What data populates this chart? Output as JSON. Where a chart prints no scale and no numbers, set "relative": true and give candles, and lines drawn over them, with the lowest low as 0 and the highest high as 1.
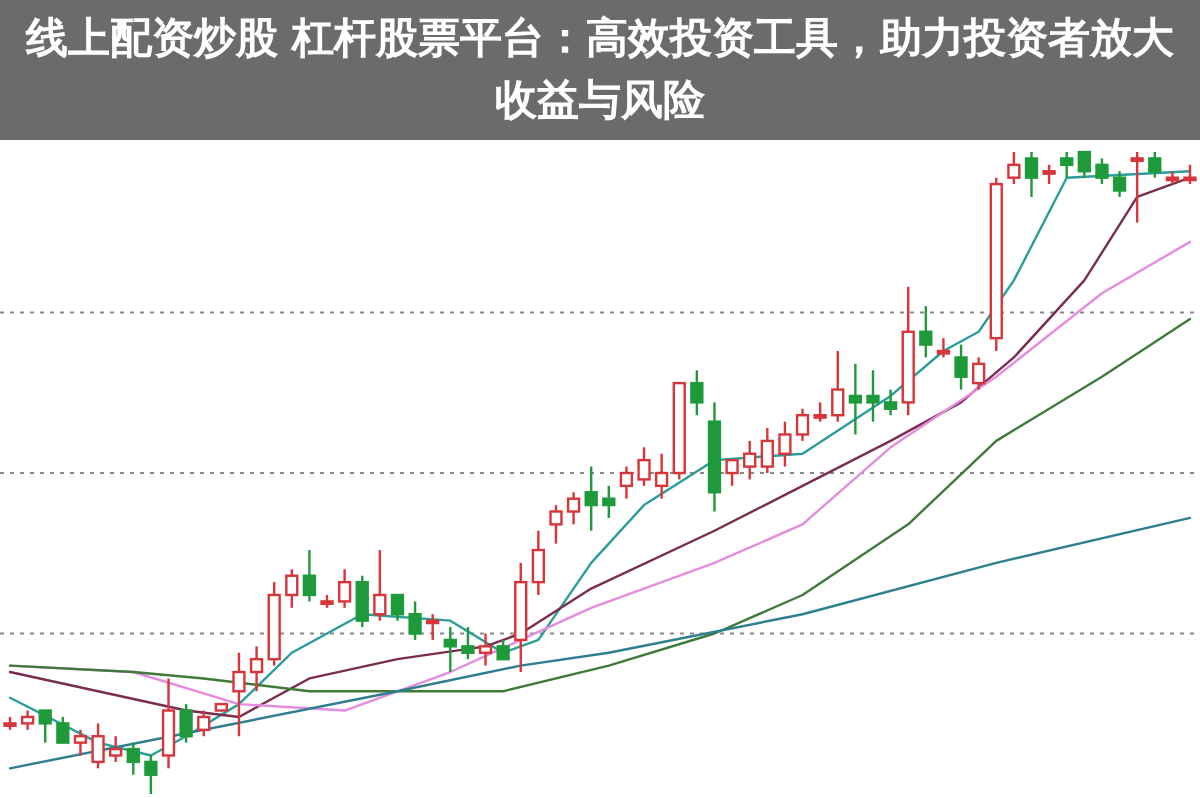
{
  "chart_data": {
    "type": "candlestick",
    "title": "线上配资炒股 杠杆股票平台：高效投资工具，助力投资者放大收益与风险",
    "relative": true,
    "categories": [
      null,
      null,
      null,
      null,
      null,
      null,
      null,
      null,
      null,
      null,
      null,
      null,
      null,
      null,
      null,
      null,
      null,
      null,
      null,
      null,
      null,
      null,
      null,
      null,
      null,
      null,
      null,
      null,
      null,
      null,
      null,
      null,
      null,
      null,
      null,
      null,
      null,
      null,
      null,
      null,
      null,
      null,
      null,
      null,
      null,
      null,
      null,
      null,
      null,
      null,
      null,
      null,
      null,
      null,
      null,
      null,
      null,
      null,
      null,
      null,
      null,
      null,
      null,
      null,
      null,
      null,
      null,
      null
    ],
    "ohlc": [
      [
        0.11,
        0.12,
        0.1,
        0.11
      ],
      [
        0.11,
        0.13,
        0.1,
        0.12
      ],
      [
        0.13,
        0.13,
        0.08,
        0.11
      ],
      [
        0.11,
        0.12,
        0.08,
        0.08
      ],
      [
        0.08,
        0.1,
        0.06,
        0.09
      ],
      [
        0.05,
        0.11,
        0.04,
        0.09
      ],
      [
        0.06,
        0.09,
        0.05,
        0.07
      ],
      [
        0.07,
        0.08,
        0.03,
        0.05
      ],
      [
        0.05,
        0.06,
        0.0,
        0.03
      ],
      [
        0.06,
        0.18,
        0.04,
        0.13
      ],
      [
        0.13,
        0.14,
        0.08,
        0.09
      ],
      [
        0.1,
        0.13,
        0.09,
        0.12
      ],
      [
        0.13,
        0.14,
        0.13,
        0.14
      ],
      [
        0.16,
        0.22,
        0.09,
        0.19
      ],
      [
        0.19,
        0.23,
        0.16,
        0.21
      ],
      [
        0.21,
        0.33,
        0.2,
        0.31
      ],
      [
        0.31,
        0.35,
        0.29,
        0.34
      ],
      [
        0.34,
        0.38,
        0.3,
        0.31
      ],
      [
        0.3,
        0.31,
        0.29,
        0.3
      ],
      [
        0.3,
        0.35,
        0.29,
        0.33
      ],
      [
        0.33,
        0.34,
        0.26,
        0.27
      ],
      [
        0.28,
        0.38,
        0.27,
        0.31
      ],
      [
        0.31,
        0.31,
        0.27,
        0.28
      ],
      [
        0.28,
        0.3,
        0.24,
        0.25
      ],
      [
        0.27,
        0.28,
        0.24,
        0.27
      ],
      [
        0.24,
        0.26,
        0.19,
        0.23
      ],
      [
        0.23,
        0.26,
        0.21,
        0.22
      ],
      [
        0.22,
        0.25,
        0.2,
        0.23
      ],
      [
        0.23,
        0.24,
        0.21,
        0.21
      ],
      [
        0.24,
        0.36,
        0.19,
        0.33
      ],
      [
        0.33,
        0.41,
        0.31,
        0.38
      ],
      [
        0.42,
        0.45,
        0.39,
        0.44
      ],
      [
        0.44,
        0.47,
        0.42,
        0.46
      ],
      [
        0.47,
        0.51,
        0.41,
        0.45
      ],
      [
        0.46,
        0.48,
        0.43,
        0.45
      ],
      [
        0.48,
        0.51,
        0.46,
        0.5
      ],
      [
        0.49,
        0.54,
        0.48,
        0.52
      ],
      [
        0.48,
        0.53,
        0.46,
        0.5
      ],
      [
        0.5,
        0.64,
        0.49,
        0.64
      ],
      [
        0.64,
        0.66,
        0.59,
        0.61
      ],
      [
        0.58,
        0.61,
        0.44,
        0.47
      ],
      [
        0.5,
        0.52,
        0.48,
        0.52
      ],
      [
        0.51,
        0.55,
        0.49,
        0.53
      ],
      [
        0.51,
        0.57,
        0.5,
        0.55
      ],
      [
        0.53,
        0.58,
        0.51,
        0.56
      ],
      [
        0.56,
        0.6,
        0.55,
        0.59
      ],
      [
        0.59,
        0.61,
        0.58,
        0.59
      ],
      [
        0.59,
        0.69,
        0.58,
        0.63
      ],
      [
        0.62,
        0.67,
        0.56,
        0.61
      ],
      [
        0.62,
        0.66,
        0.58,
        0.61
      ],
      [
        0.61,
        0.63,
        0.59,
        0.6
      ],
      [
        0.61,
        0.79,
        0.59,
        0.72
      ],
      [
        0.72,
        0.76,
        0.68,
        0.7
      ],
      [
        0.69,
        0.71,
        0.68,
        0.69
      ],
      [
        0.68,
        0.7,
        0.63,
        0.65
      ],
      [
        0.64,
        0.68,
        0.63,
        0.67
      ],
      [
        0.71,
        0.96,
        0.69,
        0.95
      ],
      [
        0.96,
        1.0,
        0.95,
        0.98
      ],
      [
        0.99,
        1.0,
        0.93,
        0.96
      ],
      [
        0.97,
        0.98,
        0.95,
        0.97
      ],
      [
        0.99,
        1.0,
        0.96,
        0.98
      ],
      [
        1.0,
        1.0,
        0.96,
        0.97
      ],
      [
        0.98,
        0.99,
        0.95,
        0.96
      ],
      [
        0.96,
        0.97,
        0.93,
        0.94
      ],
      [
        0.99,
        1.0,
        0.89,
        0.99
      ],
      [
        0.99,
        1.0,
        0.96,
        0.97
      ],
      [
        0.96,
        0.97,
        0.95,
        0.96
      ],
      [
        0.96,
        0.98,
        0.95,
        0.96
      ]
    ],
    "series": [
      {
        "type": "line",
        "color": "#2a9d9a",
        "values": [
          0.15,
          null,
          null,
          null,
          null,
          0.08,
          null,
          null,
          0.06,
          null,
          0.09,
          null,
          null,
          0.14,
          null,
          null,
          0.22,
          null,
          null,
          null,
          0.28,
          null,
          null,
          null,
          null,
          0.27,
          null,
          null,
          0.22,
          null,
          0.24,
          null,
          null,
          0.36,
          null,
          null,
          0.45,
          null,
          null,
          null,
          0.52,
          null,
          null,
          null,
          null,
          0.53,
          null,
          null,
          null,
          null,
          0.62,
          null,
          null,
          0.69,
          null,
          0.72,
          null,
          0.8,
          null,
          null,
          0.96,
          null,
          null,
          null,
          null,
          null,
          null,
          0.97
        ]
      },
      {
        "type": "line",
        "color": "#7a2e4f",
        "values": [
          0.19,
          null,
          null,
          null,
          null,
          0.16,
          null,
          null,
          null,
          null,
          0.13,
          null,
          null,
          0.12,
          null,
          null,
          null,
          0.18,
          null,
          null,
          null,
          null,
          0.21,
          null,
          null,
          null,
          null,
          0.23,
          null,
          0.25,
          null,
          null,
          null,
          0.32,
          null,
          null,
          null,
          null,
          null,
          null,
          0.41,
          null,
          null,
          null,
          null,
          0.48,
          null,
          null,
          null,
          null,
          0.55,
          null,
          null,
          null,
          0.61,
          null,
          null,
          0.68,
          null,
          null,
          null,
          0.8,
          null,
          null,
          0.93,
          null,
          null,
          0.96
        ]
      },
      {
        "type": "line",
        "color": "#e58be0",
        "values": [
          0.2,
          null,
          null,
          null,
          null,
          null,
          null,
          0.19,
          null,
          null,
          null,
          null,
          null,
          0.14,
          null,
          null,
          null,
          null,
          null,
          0.13,
          null,
          null,
          null,
          null,
          null,
          0.19,
          null,
          null,
          null,
          0.24,
          null,
          null,
          null,
          0.29,
          null,
          null,
          null,
          null,
          null,
          null,
          0.36,
          null,
          null,
          null,
          null,
          0.42,
          null,
          null,
          null,
          null,
          0.54,
          null,
          null,
          null,
          null,
          null,
          0.65,
          null,
          null,
          null,
          null,
          null,
          0.78,
          null,
          null,
          null,
          null,
          0.86
        ]
      },
      {
        "type": "line",
        "color": "#3f7a3a",
        "values": [
          0.2,
          null,
          null,
          null,
          null,
          null,
          null,
          0.19,
          null,
          null,
          null,
          0.18,
          null,
          null,
          null,
          null,
          null,
          0.16,
          null,
          null,
          null,
          null,
          null,
          null,
          null,
          null,
          null,
          null,
          0.16,
          null,
          null,
          null,
          null,
          null,
          0.2,
          null,
          null,
          null,
          null,
          null,
          0.25,
          null,
          null,
          null,
          null,
          0.31,
          null,
          null,
          null,
          null,
          null,
          0.42,
          null,
          null,
          null,
          null,
          0.55,
          null,
          null,
          null,
          null,
          null,
          0.65,
          null,
          null,
          null,
          null,
          0.74
        ]
      },
      {
        "type": "line",
        "color": "#2d7f8f",
        "values": [
          0.04,
          null,
          null,
          null,
          null,
          null,
          null,
          null,
          null,
          null,
          null,
          0.1,
          null,
          null,
          null,
          null,
          null,
          null,
          null,
          null,
          null,
          null,
          0.16,
          null,
          null,
          null,
          null,
          null,
          null,
          0.2,
          null,
          null,
          null,
          null,
          0.22,
          null,
          null,
          null,
          null,
          null,
          null,
          null,
          null,
          null,
          null,
          0.28,
          null,
          null,
          null,
          null,
          null,
          null,
          null,
          null,
          null,
          null,
          0.36,
          null,
          null,
          null,
          null,
          null,
          null,
          null,
          null,
          null,
          null,
          0.43
        ]
      }
    ],
    "ref_lines": [
      {
        "axis": "y",
        "value": 0.75,
        "color": "#888888",
        "line_style": "dotted"
      },
      {
        "axis": "y",
        "value": 0.5,
        "color": "#888888",
        "line_style": "dotted"
      },
      {
        "axis": "y",
        "value": 0.25,
        "color": "#888888",
        "line_style": "dotted"
      }
    ]
  }
}
